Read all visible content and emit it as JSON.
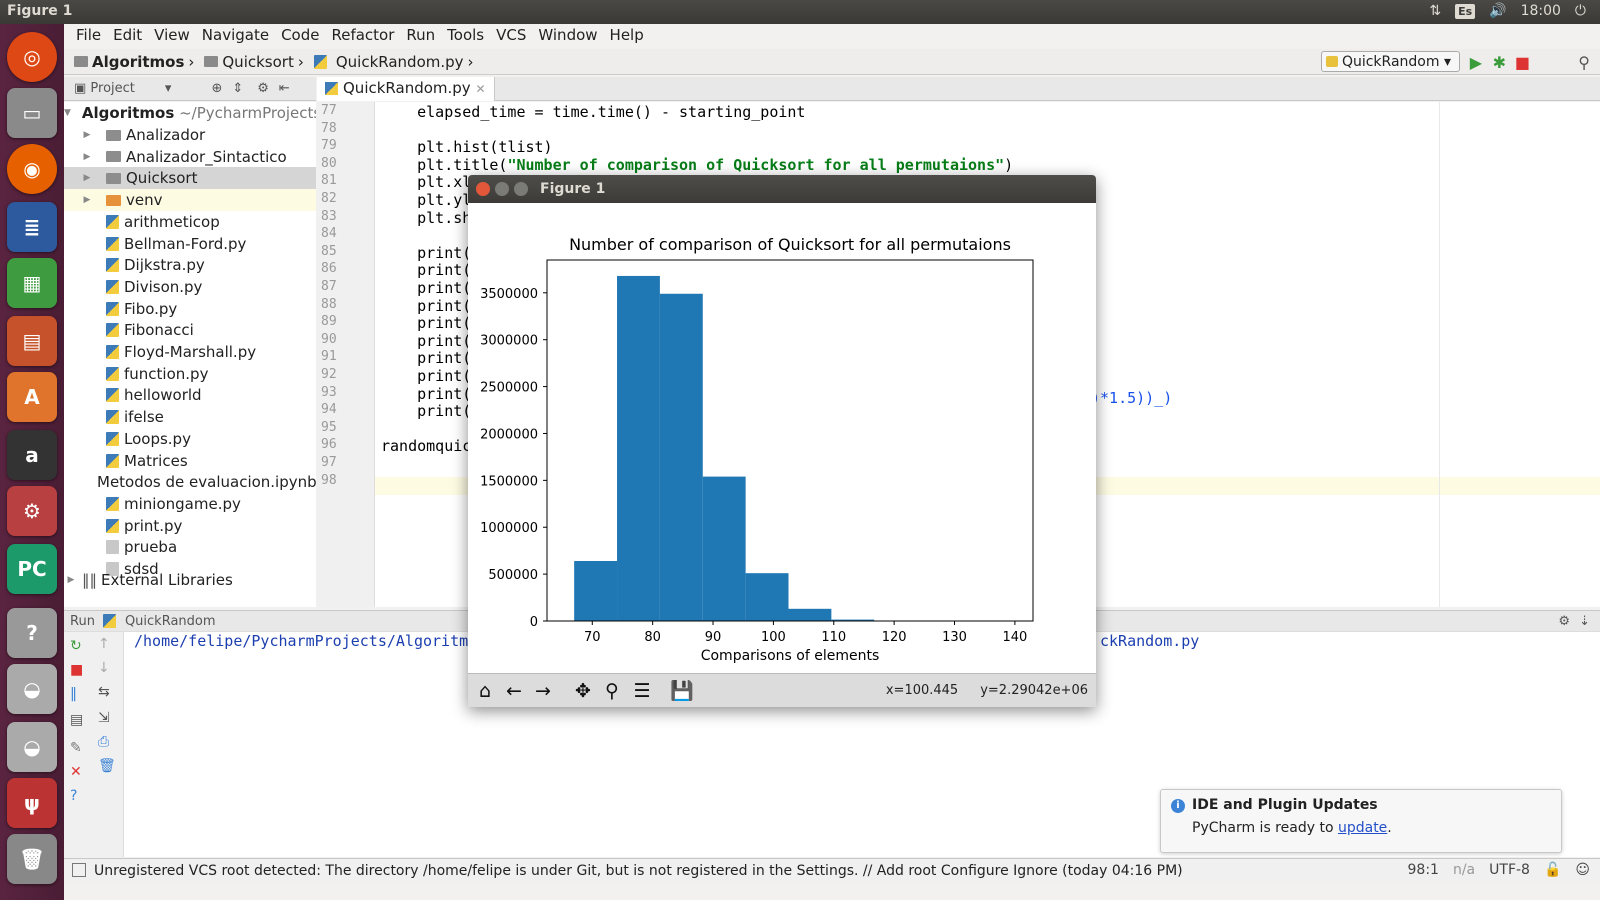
{
  "topbar": {
    "title": "Figure 1",
    "keyboard": "Es",
    "time": "18:00"
  },
  "menu": [
    "File",
    "Edit",
    "View",
    "Navigate",
    "Code",
    "Refactor",
    "Run",
    "Tools",
    "VCS",
    "Window",
    "Help"
  ],
  "breadcrumb": [
    "Algoritmos",
    "Quicksort",
    "QuickRandom.py"
  ],
  "run_config": "QuickRandom",
  "project": {
    "header": "Project",
    "root_name": "Algoritmos",
    "root_path": "~/PycharmProjects",
    "items": [
      {
        "name": "Analizador",
        "type": "dir"
      },
      {
        "name": "Analizador_Sintactico",
        "type": "dir"
      },
      {
        "name": "Quicksort",
        "type": "dir"
      },
      {
        "name": "venv",
        "type": "venv"
      },
      {
        "name": "arithmeticop",
        "type": "py"
      },
      {
        "name": "Bellman-Ford.py",
        "type": "py"
      },
      {
        "name": "Dijkstra.py",
        "type": "py"
      },
      {
        "name": "Divison.py",
        "type": "py"
      },
      {
        "name": "Fibo.py",
        "type": "py"
      },
      {
        "name": "Fibonacci",
        "type": "py"
      },
      {
        "name": "Floyd-Marshall.py",
        "type": "py"
      },
      {
        "name": "function.py",
        "type": "py"
      },
      {
        "name": "helloworld",
        "type": "py"
      },
      {
        "name": "ifelse",
        "type": "py"
      },
      {
        "name": "Loops.py",
        "type": "py"
      },
      {
        "name": "Matrices",
        "type": "py"
      },
      {
        "name": "Metodos de evaluacion.ipynb",
        "type": "nb"
      },
      {
        "name": "miniongame.py",
        "type": "py"
      },
      {
        "name": "print.py",
        "type": "py"
      },
      {
        "name": "prueba",
        "type": "txt"
      },
      {
        "name": "sdsd",
        "type": "txt"
      }
    ],
    "external": "External Libraries"
  },
  "editor": {
    "tab": "QuickRandom.py",
    "lines": [
      {
        "n": "77",
        "code": "    elapsed_time = time.time() - starting_point"
      },
      {
        "n": "78",
        "code": ""
      },
      {
        "n": "79",
        "code": "    plt.hist(tlist)"
      },
      {
        "n": "80",
        "code": "    plt.title(",
        "str": "\"Number of comparison of Quicksort for all permutaions\"",
        "tail": ")"
      },
      {
        "n": "81",
        "code": "    plt.xl"
      },
      {
        "n": "82",
        "code": "    plt.yl"
      },
      {
        "n": "83",
        "code": "    plt.sh"
      },
      {
        "n": "84",
        "code": ""
      },
      {
        "n": "85",
        "code": "    print("
      },
      {
        "n": "86",
        "code": "    print("
      },
      {
        "n": "87",
        "code": "    print("
      },
      {
        "n": "88",
        "code": "    print("
      },
      {
        "n": "89",
        "code": "    print("
      },
      {
        "n": "90",
        "code": "    print("
      },
      {
        "n": "91",
        "code": "    print("
      },
      {
        "n": "92",
        "code": "    print("
      },
      {
        "n": "93",
        "code": "    print("
      },
      {
        "n": "94",
        "code": "    print("
      },
      {
        "n": "95",
        "code": ""
      },
      {
        "n": "96",
        "code": "randomquic"
      },
      {
        "n": "97",
        "code": ""
      },
      {
        "n": "98",
        "code": ""
      }
    ],
    "line92_tail": ")*1.5))_)"
  },
  "run": {
    "header": "Run",
    "config": "QuickRandom",
    "path_start": "/home/felipe/PycharmProjects/Algoritmo",
    "path_end": "ckRandom.py"
  },
  "status": {
    "message": "Unregistered VCS root detected: The directory /home/felipe is under Git, but is not registered in the Settings. // Add root  Configure  Ignore (today 04:16 PM)",
    "position": "98:1",
    "na": "n/a",
    "encoding": "UTF-8"
  },
  "notification": {
    "title": "IDE and Plugin Updates",
    "body": "PyCharm is ready to ",
    "link": "update",
    "end": "."
  },
  "figure": {
    "window_title": "Figure 1",
    "x_readout": "x=100.445",
    "y_readout": "y=2.29042e+06"
  },
  "chart_data": {
    "type": "bar",
    "title": "Number of comparison of Quicksort for all permutaions",
    "xlabel": "Comparisons of elements",
    "ylabel": "",
    "bin_edges": [
      67,
      74.1,
      81.2,
      88.3,
      95.4,
      102.5,
      109.6,
      116.7
    ],
    "values": [
      640000,
      3680000,
      3490000,
      1540000,
      510000,
      130000,
      15000
    ],
    "xlim": [
      62.5,
      143
    ],
    "ylim": [
      0,
      3850000
    ],
    "xticks": [
      70,
      80,
      90,
      100,
      110,
      120,
      130,
      140
    ],
    "yticks": [
      0,
      500000,
      1000000,
      1500000,
      2000000,
      2500000,
      3000000,
      3500000
    ],
    "bar_color": "#1f77b4",
    "grid": false
  }
}
